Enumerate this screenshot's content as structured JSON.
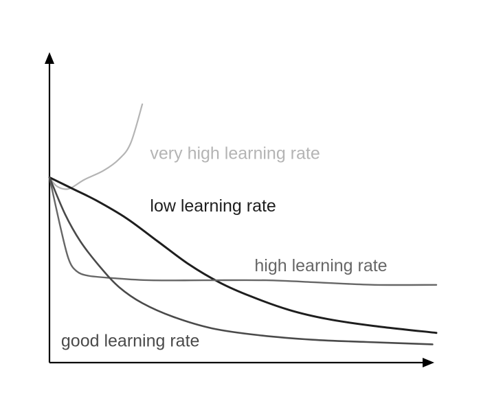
{
  "chart_data": {
    "type": "line",
    "title": "",
    "xlabel": "",
    "ylabel": "",
    "xlim": [
      0,
      100
    ],
    "ylim": [
      0,
      100
    ],
    "grid": false,
    "legend": "inline labels",
    "series": [
      {
        "name": "very high learning rate",
        "color": "#b4b4b4",
        "points": [
          [
            0,
            81
          ],
          [
            2,
            77
          ],
          [
            5,
            76
          ],
          [
            9,
            80
          ],
          [
            14,
            84
          ],
          [
            18,
            89
          ],
          [
            21,
            96
          ],
          [
            24,
            113
          ]
        ]
      },
      {
        "name": "low learning rate",
        "color": "#1e1e1e",
        "points": [
          [
            0,
            81
          ],
          [
            6,
            76
          ],
          [
            12,
            71
          ],
          [
            20,
            63
          ],
          [
            28,
            53
          ],
          [
            36,
            43
          ],
          [
            44,
            35
          ],
          [
            52,
            29
          ],
          [
            62,
            23
          ],
          [
            72,
            19
          ],
          [
            84,
            16
          ],
          [
            100,
            13
          ]
        ]
      },
      {
        "name": "high learning rate",
        "color": "#666666",
        "points": [
          [
            0,
            81
          ],
          [
            3,
            58
          ],
          [
            5,
            45
          ],
          [
            7,
            40
          ],
          [
            10,
            38
          ],
          [
            16,
            37
          ],
          [
            26,
            36
          ],
          [
            40,
            36
          ],
          [
            56,
            36
          ],
          [
            70,
            35
          ],
          [
            84,
            34
          ],
          [
            100,
            34
          ]
        ]
      },
      {
        "name": "good learning rate",
        "color": "#4a4a4a",
        "points": [
          [
            0,
            81
          ],
          [
            4,
            65
          ],
          [
            8,
            53
          ],
          [
            13,
            42
          ],
          [
            18,
            33
          ],
          [
            24,
            26
          ],
          [
            32,
            20
          ],
          [
            42,
            15
          ],
          [
            54,
            12
          ],
          [
            68,
            10
          ],
          [
            82,
            9
          ],
          [
            99,
            8
          ]
        ]
      }
    ],
    "labels": [
      {
        "text": "very high learning rate",
        "series": 0,
        "at": [
          26,
          89
        ],
        "color": "#b4b4b4"
      },
      {
        "text": "low learning rate",
        "series": 1,
        "at": [
          26,
          66
        ],
        "color": "#1e1e1e"
      },
      {
        "text": "high learning rate",
        "series": 2,
        "at": [
          53,
          40
        ],
        "color": "#666666"
      },
      {
        "text": "good learning rate",
        "series": 3,
        "at": [
          3,
          7
        ],
        "color": "#4a4a4a"
      }
    ]
  }
}
